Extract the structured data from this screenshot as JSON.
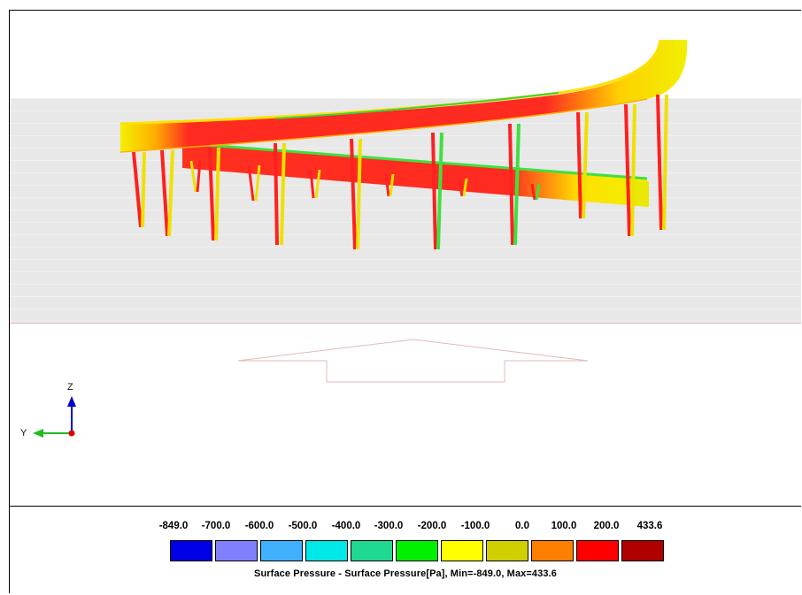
{
  "legend": {
    "values": [
      "-849.0",
      "-700.0",
      "-600.0",
      "-500.0",
      "-400.0",
      "-300.0",
      "-200.0",
      "-100.0",
      "0.0",
      "100.0",
      "200.0",
      "433.6"
    ],
    "colors": [
      "#0000e6",
      "#8080ff",
      "#40b0ff",
      "#00e8e8",
      "#20d890",
      "#00f000",
      "#ffff00",
      "#d0d000",
      "#ff8000",
      "#ff0000",
      "#b00000"
    ],
    "title": "Surface Pressure  - Surface Pressure[Pa], Min=-849.0, Max=433.6"
  },
  "axes": {
    "z_label": "Z",
    "y_label": "Y"
  },
  "scene_colors": {
    "ground": "#e8e8e8",
    "structure_main": "#ff2020",
    "structure_edge": "#f0e000",
    "structure_green": "#40e040"
  }
}
